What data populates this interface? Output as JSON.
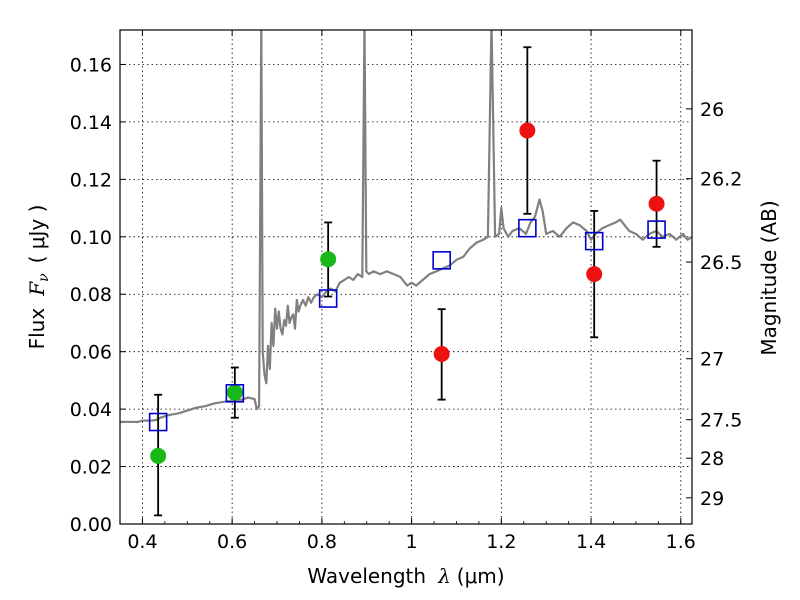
{
  "chart_data": {
    "type": "scatter",
    "title": "",
    "xlabel": {
      "text": "Wavelength",
      "symbol": "λ",
      "unit": "(μm)"
    },
    "ylabel": {
      "text": "Flux",
      "symbol": "F",
      "subscript": "ν",
      "unit": "( μJy )"
    },
    "ylabel_right": "Magnitude (AB)",
    "xlim": [
      0.35,
      1.625
    ],
    "ylim": [
      0.0,
      0.172
    ],
    "grid": true,
    "x_ticks": [
      {
        "value": 0.4,
        "label": "0.4"
      },
      {
        "value": 0.6,
        "label": "0.6"
      },
      {
        "value": 0.8,
        "label": "0.8"
      },
      {
        "value": 1.0,
        "label": "1"
      },
      {
        "value": 1.2,
        "label": "1.2"
      },
      {
        "value": 1.4,
        "label": "1.4"
      },
      {
        "value": 1.6,
        "label": "1.6"
      }
    ],
    "y_ticks": [
      {
        "value": 0.0,
        "label": "0.00"
      },
      {
        "value": 0.02,
        "label": "0.02"
      },
      {
        "value": 0.04,
        "label": "0.04"
      },
      {
        "value": 0.06,
        "label": "0.06"
      },
      {
        "value": 0.08,
        "label": "0.08"
      },
      {
        "value": 0.1,
        "label": "0.10"
      },
      {
        "value": 0.12,
        "label": "0.12"
      },
      {
        "value": 0.14,
        "label": "0.14"
      },
      {
        "value": 0.16,
        "label": "0.16"
      }
    ],
    "right_ticks": [
      {
        "mag": 26.0,
        "label": "26"
      },
      {
        "mag": 26.2,
        "label": "26.2"
      },
      {
        "mag": 26.5,
        "label": "26.5"
      },
      {
        "mag": 27.0,
        "label": "27"
      },
      {
        "mag": 27.5,
        "label": "27.5"
      },
      {
        "mag": 28.0,
        "label": "28"
      },
      {
        "mag": 29.0,
        "label": "29"
      }
    ],
    "series": [
      {
        "kind": "line",
        "color": "#808080",
        "points": [
          [
            0.35,
            0.0355
          ],
          [
            0.37,
            0.0356
          ],
          [
            0.39,
            0.0355
          ],
          [
            0.4,
            0.036
          ],
          [
            0.42,
            0.036
          ],
          [
            0.43,
            0.0362
          ],
          [
            0.44,
            0.037
          ],
          [
            0.46,
            0.038
          ],
          [
            0.48,
            0.0385
          ],
          [
            0.5,
            0.0395
          ],
          [
            0.52,
            0.0405
          ],
          [
            0.54,
            0.041
          ],
          [
            0.56,
            0.042
          ],
          [
            0.58,
            0.0425
          ],
          [
            0.6,
            0.043
          ],
          [
            0.62,
            0.0432
          ],
          [
            0.635,
            0.044
          ],
          [
            0.65,
            0.0435
          ],
          [
            0.655,
            0.04
          ],
          [
            0.66,
            0.041
          ],
          [
            0.665,
            0.175
          ],
          [
            0.668,
            0.06
          ],
          [
            0.672,
            0.052
          ],
          [
            0.676,
            0.049
          ],
          [
            0.68,
            0.062
          ],
          [
            0.684,
            0.054
          ],
          [
            0.688,
            0.07
          ],
          [
            0.692,
            0.062
          ],
          [
            0.696,
            0.075
          ],
          [
            0.7,
            0.068
          ],
          [
            0.704,
            0.074
          ],
          [
            0.708,
            0.068
          ],
          [
            0.712,
            0.066
          ],
          [
            0.716,
            0.071
          ],
          [
            0.72,
            0.069
          ],
          [
            0.724,
            0.076
          ],
          [
            0.728,
            0.07
          ],
          [
            0.732,
            0.072
          ],
          [
            0.736,
            0.073
          ],
          [
            0.74,
            0.068
          ],
          [
            0.744,
            0.078
          ],
          [
            0.748,
            0.074
          ],
          [
            0.752,
            0.076
          ],
          [
            0.758,
            0.078
          ],
          [
            0.764,
            0.076
          ],
          [
            0.77,
            0.079
          ],
          [
            0.776,
            0.077
          ],
          [
            0.782,
            0.079
          ],
          [
            0.79,
            0.08
          ],
          [
            0.8,
            0.079
          ],
          [
            0.81,
            0.081
          ],
          [
            0.82,
            0.082
          ],
          [
            0.83,
            0.081
          ],
          [
            0.84,
            0.084
          ],
          [
            0.85,
            0.085
          ],
          [
            0.86,
            0.086
          ],
          [
            0.87,
            0.085
          ],
          [
            0.88,
            0.087
          ],
          [
            0.89,
            0.086
          ],
          [
            0.895,
            0.175
          ],
          [
            0.899,
            0.088
          ],
          [
            0.905,
            0.087
          ],
          [
            0.915,
            0.088
          ],
          [
            0.93,
            0.087
          ],
          [
            0.945,
            0.088
          ],
          [
            0.96,
            0.087
          ],
          [
            0.975,
            0.086
          ],
          [
            0.99,
            0.083
          ],
          [
            1.0,
            0.084
          ],
          [
            1.01,
            0.083
          ],
          [
            1.025,
            0.085
          ],
          [
            1.04,
            0.087
          ],
          [
            1.055,
            0.088
          ],
          [
            1.07,
            0.089
          ],
          [
            1.085,
            0.09
          ],
          [
            1.1,
            0.092
          ],
          [
            1.115,
            0.093
          ],
          [
            1.13,
            0.096
          ],
          [
            1.145,
            0.098
          ],
          [
            1.16,
            0.099
          ],
          [
            1.17,
            0.1
          ],
          [
            1.178,
            0.175
          ],
          [
            1.186,
            0.1
          ],
          [
            1.195,
            0.101
          ],
          [
            1.2,
            0.11
          ],
          [
            1.205,
            0.103
          ],
          [
            1.215,
            0.1
          ],
          [
            1.225,
            0.102
          ],
          [
            1.24,
            0.103
          ],
          [
            1.255,
            0.101
          ],
          [
            1.265,
            0.105
          ],
          [
            1.275,
            0.107
          ],
          [
            1.285,
            0.113
          ],
          [
            1.292,
            0.109
          ],
          [
            1.3,
            0.101
          ],
          [
            1.315,
            0.102
          ],
          [
            1.33,
            0.1
          ],
          [
            1.345,
            0.103
          ],
          [
            1.36,
            0.105
          ],
          [
            1.375,
            0.104
          ],
          [
            1.39,
            0.102
          ],
          [
            1.4,
            0.099
          ],
          [
            1.41,
            0.101
          ],
          [
            1.425,
            0.103
          ],
          [
            1.44,
            0.104
          ],
          [
            1.455,
            0.105
          ],
          [
            1.465,
            0.106
          ],
          [
            1.475,
            0.104
          ],
          [
            1.485,
            0.102
          ],
          [
            1.5,
            0.101
          ],
          [
            1.515,
            0.099
          ],
          [
            1.53,
            0.101
          ],
          [
            1.545,
            0.102
          ],
          [
            1.56,
            0.1
          ],
          [
            1.575,
            0.101
          ],
          [
            1.59,
            0.099
          ],
          [
            1.605,
            0.101
          ],
          [
            1.615,
            0.099
          ],
          [
            1.625,
            0.1
          ]
        ]
      },
      {
        "kind": "points",
        "marker": "circle",
        "color": "#18b818",
        "points": [
          {
            "x": 0.435,
            "y": 0.0237,
            "lo": 0.003,
            "hi": 0.045
          },
          {
            "x": 0.606,
            "y": 0.0458,
            "lo": 0.037,
            "hi": 0.0545
          },
          {
            "x": 0.814,
            "y": 0.0922,
            "lo": 0.0792,
            "hi": 0.105
          }
        ]
      },
      {
        "kind": "points",
        "marker": "circle",
        "color": "#ee1111",
        "points": [
          {
            "x": 1.067,
            "y": 0.0592,
            "lo": 0.0433,
            "hi": 0.0748
          },
          {
            "x": 1.258,
            "y": 0.137,
            "lo": 0.108,
            "hi": 0.166
          },
          {
            "x": 1.407,
            "y": 0.087,
            "lo": 0.065,
            "hi": 0.109
          },
          {
            "x": 1.546,
            "y": 0.1115,
            "lo": 0.0965,
            "hi": 0.1265
          }
        ]
      },
      {
        "kind": "points",
        "marker": "square-open",
        "color": "#0000cc",
        "points": [
          {
            "x": 0.435,
            "y": 0.0355
          },
          {
            "x": 0.606,
            "y": 0.0455
          },
          {
            "x": 0.814,
            "y": 0.0785
          },
          {
            "x": 1.067,
            "y": 0.0918
          },
          {
            "x": 1.258,
            "y": 0.103
          },
          {
            "x": 1.407,
            "y": 0.0985
          },
          {
            "x": 1.546,
            "y": 0.1025
          }
        ]
      }
    ]
  }
}
